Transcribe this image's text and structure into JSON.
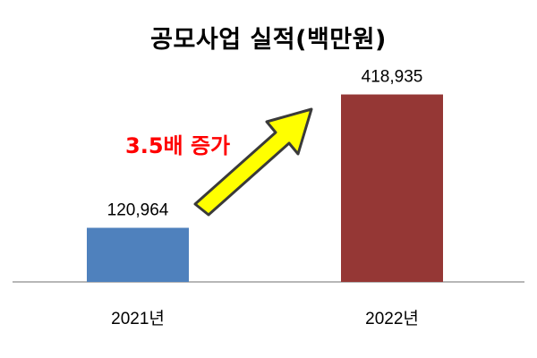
{
  "chart_data": {
    "type": "bar",
    "title": "공모사업 실적(백만원)",
    "categories": [
      "2021년",
      "2022년"
    ],
    "values": [
      120964,
      418935
    ],
    "value_labels": [
      "120,964",
      "418,935"
    ],
    "bar_colors": [
      "#4f81bd",
      "#953735"
    ],
    "ylim": [
      0,
      440000
    ],
    "grid": false,
    "legend": "none",
    "annotation": {
      "text": "3.5배 증가",
      "color": "#ff0000",
      "arrow_fill": "#ffff00",
      "arrow_stroke": "#3a3a3a"
    }
  }
}
